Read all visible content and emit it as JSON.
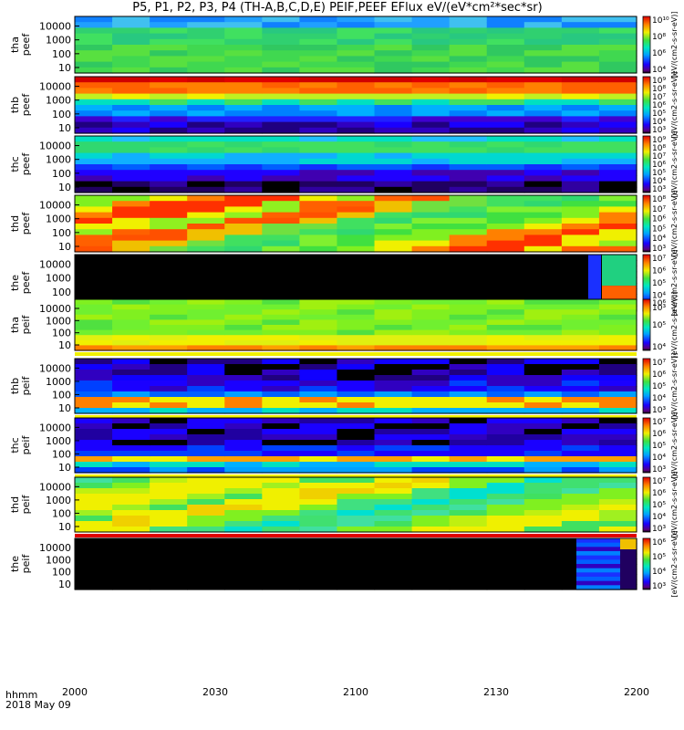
{
  "title": "P5, P1, P2, P3, P4 (TH-A,B,C,D,E) PEIF,PEEF EFlux eV/(eV*cm²*sec*sr)",
  "time_label": "hhmm",
  "date_label": "2018 May 09",
  "colorbar_unit": "[eV/(cm2-s-sr-eV)]",
  "chart_data": {
    "type": "heatmap",
    "x_ticks": [
      "2000",
      "2030",
      "2100",
      "2130",
      "2200"
    ],
    "panels": [
      {
        "label": "tha peef",
        "y_ticks": [
          "10",
          "100",
          "1000",
          "10000"
        ],
        "cbar_ticks": [
          "10⁴",
          "10⁶",
          "10⁸",
          "10¹⁰"
        ],
        "fill": "green-blue"
      },
      {
        "label": "thb peef",
        "y_ticks": [
          "10",
          "100",
          "1000",
          "10000"
        ],
        "cbar_ticks": [
          "10³",
          "10⁴",
          "10⁵",
          "10⁶",
          "10⁷",
          "10⁸",
          "10⁹"
        ],
        "fill": "bands-red"
      },
      {
        "label": "thc peef",
        "y_ticks": [
          "10",
          "100",
          "1000",
          "10000"
        ],
        "cbar_ticks": [
          "10³",
          "10⁴",
          "10⁵",
          "10⁶",
          "10⁷",
          "10⁸",
          "10⁹"
        ],
        "fill": "bands-green"
      },
      {
        "label": "thd peef",
        "y_ticks": [
          "10",
          "100",
          "1000",
          "10000"
        ],
        "cbar_ticks": [
          "10³",
          "10⁴",
          "10⁵",
          "10⁶",
          "10⁷",
          "10⁸"
        ],
        "fill": "blocks-orange"
      },
      {
        "label": "the peef",
        "y_ticks": [
          "100",
          "1000",
          "10000"
        ],
        "cbar_ticks": [
          "10³",
          "10⁴",
          "10⁵",
          "10⁶",
          "10⁷"
        ],
        "fill": "sparse"
      },
      {
        "label": "tha peif",
        "y_ticks": [
          "10",
          "100",
          "1000",
          "10000"
        ],
        "cbar_ticks": [
          "10⁴",
          "10⁵",
          "10⁶"
        ],
        "fill": "yellow-green"
      },
      {
        "label": "thb peif",
        "y_ticks": [
          "10",
          "100",
          "1000",
          "10000"
        ],
        "cbar_ticks": [
          "10³",
          "10⁴",
          "10⁵",
          "10⁶",
          "10⁷"
        ],
        "fill": "bands-blue"
      },
      {
        "label": "thc peif",
        "y_ticks": [
          "10",
          "100",
          "1000",
          "10000"
        ],
        "cbar_ticks": [
          "10³",
          "10⁴",
          "10⁵",
          "10⁶",
          "10⁷"
        ],
        "fill": "bands-blue2"
      },
      {
        "label": "thd peif",
        "y_ticks": [
          "10",
          "100",
          "1000",
          "10000"
        ],
        "cbar_ticks": [
          "10³",
          "10⁴",
          "10⁵",
          "10⁶",
          "10⁷"
        ],
        "fill": "blocks-yellow"
      },
      {
        "label": "the peif",
        "y_ticks": [
          "10",
          "100",
          "1000",
          "10000"
        ],
        "cbar_ticks": [
          "10³",
          "10⁴",
          "10⁵",
          "10⁶"
        ],
        "fill": "sparse2"
      }
    ]
  }
}
